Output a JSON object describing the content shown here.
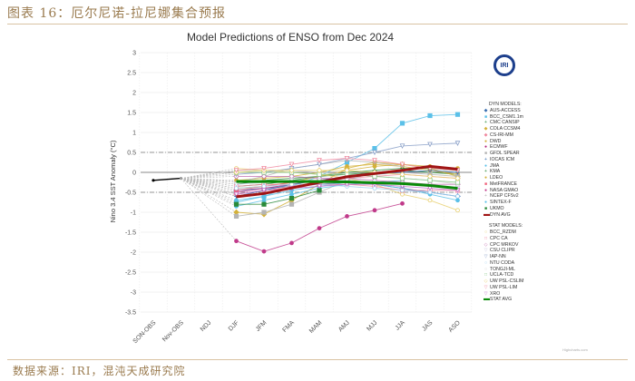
{
  "figure_title": "图表 16：厄尔尼诺-拉尼娜集合预报",
  "source": "数据来源：IRI，混沌天成研究院",
  "logo_text": "IRI",
  "credit": "Highcharts.com",
  "chart_data": {
    "type": "line",
    "title": "Model Predictions of ENSO from Dec 2024",
    "xlabel": "",
    "ylabel": "Nino 3.4 SST Anomaly (°C)",
    "ylim": [
      -3.5,
      3
    ],
    "yticks": [
      "3",
      "2.5",
      "2",
      "1.5",
      "1",
      "0.5",
      "0",
      "-0.5",
      "-1",
      "-1.5",
      "-2",
      "-2.5",
      "-3",
      "-3.5"
    ],
    "ytick_values": [
      3,
      2.5,
      2,
      1.5,
      1,
      0.5,
      0,
      -0.5,
      -1,
      -1.5,
      -2,
      -2.5,
      -3,
      -3.5
    ],
    "thresholds": [
      0.5,
      -0.5
    ],
    "grid": true,
    "legend_position": "right",
    "categories": [
      "SON-OBS",
      "Nov-OBS",
      "NDJ",
      "DJF",
      "JFM",
      "FMA",
      "MAM",
      "AMJ",
      "MJJ",
      "JJA",
      "JAS",
      "ASO"
    ],
    "observed": {
      "name": "OBS",
      "values": [
        -0.2,
        -0.15
      ],
      "color": "#000000"
    },
    "legend_dyn_header": "DYN MODELS:",
    "legend_stat_header": "STAT MODELS:",
    "series": [
      {
        "name": "AUS-ACCESS",
        "group": "dyn",
        "color": "#3a6fb0",
        "marker": "diamond",
        "values": [
          null,
          null,
          null,
          -0.45,
          -0.4,
          -0.35,
          -0.3,
          -0.25,
          -0.3,
          -0.4,
          -0.5,
          -0.6
        ]
      },
      {
        "name": "BCC_CSM1.1m",
        "group": "dyn",
        "color": "#5bc0e8",
        "marker": "square",
        "values": [
          null,
          null,
          null,
          -0.75,
          -0.6,
          -0.35,
          -0.1,
          0.25,
          0.6,
          1.23,
          1.42,
          1.45
        ]
      },
      {
        "name": "CMC CANSIP",
        "group": "dyn",
        "color": "#2a8a3a",
        "marker": "plus",
        "values": [
          null,
          null,
          null,
          -0.3,
          -0.2,
          -0.15,
          -0.1,
          -0.05,
          0.0,
          0.05,
          0.0,
          -0.05
        ]
      },
      {
        "name": "COLA CCSM4",
        "group": "dyn",
        "color": "#d4b13a",
        "marker": "diamond",
        "values": [
          null,
          null,
          null,
          -1.0,
          -1.05,
          -0.7,
          -0.3,
          0.1,
          0.25,
          0.2,
          0.1,
          -0.1
        ]
      },
      {
        "name": "CS-IRI-MM",
        "group": "dyn",
        "color": "#f08aa0",
        "marker": "diamond",
        "values": [
          null,
          null,
          null,
          -0.55,
          -0.45,
          -0.35,
          -0.25,
          -0.15,
          -0.1,
          -0.05,
          -0.1,
          -0.15
        ]
      },
      {
        "name": "DWD",
        "group": "dyn",
        "color": "#d4b13a",
        "marker": "circle",
        "values": [
          null,
          null,
          null,
          -0.2,
          -0.15,
          -0.1,
          0.0,
          0.15,
          0.2,
          0.15,
          0.05,
          -0.05
        ]
      },
      {
        "name": "ECMWF",
        "group": "dyn",
        "color": "#b0207a",
        "marker": "circle",
        "values": [
          null,
          null,
          null,
          -0.5,
          -0.4,
          -0.3,
          -0.2,
          -0.1,
          null,
          null,
          null,
          null
        ]
      },
      {
        "name": "GFDL SPEAR",
        "group": "dyn",
        "color": "#b4b4b4",
        "marker": "square",
        "values": [
          null,
          null,
          null,
          -1.1,
          -1.0,
          -0.8,
          -0.5,
          -0.2,
          0.0,
          0.0,
          -0.05,
          -0.1
        ]
      },
      {
        "name": "IOCAS ICM",
        "group": "dyn",
        "color": "#3a6fb0",
        "marker": "plus",
        "values": [
          null,
          null,
          null,
          -0.6,
          -0.45,
          -0.3,
          -0.2,
          -0.1,
          -0.05,
          0.0,
          0.05,
          0.0
        ]
      },
      {
        "name": "JMA",
        "group": "dyn",
        "color": "#5bc0e8",
        "marker": "circle",
        "values": [
          null,
          null,
          null,
          -0.7,
          -0.6,
          -0.45,
          -0.35,
          -0.25,
          -0.3,
          -0.4,
          -0.55,
          -0.7
        ]
      },
      {
        "name": "KMA",
        "group": "dyn",
        "color": "#2a8a3a",
        "marker": "plus",
        "values": [
          null,
          null,
          null,
          -0.35,
          -0.3,
          -0.2,
          -0.1,
          0.0,
          0.05,
          0.1,
          0.1,
          0.05
        ]
      },
      {
        "name": "LDEO",
        "group": "dyn",
        "color": "#d4b13a",
        "marker": "circle",
        "values": [
          null,
          null,
          null,
          -0.4,
          -0.35,
          -0.25,
          -0.1,
          0.05,
          0.15,
          0.2,
          0.15,
          0.1
        ]
      },
      {
        "name": "MetFRANCE",
        "group": "dyn",
        "color": "#f0607a",
        "marker": "square",
        "values": [
          null,
          null,
          null,
          -0.45,
          -0.35,
          -0.25,
          -0.2,
          -0.15,
          null,
          null,
          null,
          null
        ]
      },
      {
        "name": "NASA GMAO",
        "group": "dyn",
        "color": "#c03a8a",
        "marker": "circle",
        "values": [
          null,
          null,
          null,
          -1.72,
          -1.98,
          -1.77,
          -1.4,
          -1.1,
          -0.95,
          -0.78,
          null,
          null
        ]
      },
      {
        "name": "NCEP CFSv2",
        "group": "dyn",
        "color": "#b4b4b4",
        "marker": "plus",
        "values": [
          null,
          null,
          null,
          -0.25,
          -0.1,
          0.1,
          0.2,
          0.3,
          0.25,
          0.15,
          null,
          null
        ]
      },
      {
        "name": "SINTEX-F",
        "group": "dyn",
        "color": "#5bc0e8",
        "marker": "circle",
        "values": [
          null,
          null,
          null,
          -0.85,
          -0.7,
          -0.55,
          -0.4,
          -0.3,
          -0.25,
          -0.2,
          null,
          null
        ]
      },
      {
        "name": "UKMO",
        "group": "dyn",
        "color": "#2a8a3a",
        "marker": "square",
        "values": [
          null,
          null,
          null,
          -0.8,
          -0.8,
          -0.65,
          -0.45,
          null,
          null,
          null,
          null,
          null
        ]
      },
      {
        "name": "DYN AVG",
        "group": "dyn",
        "color": "#a01414",
        "marker": "none",
        "avg": true,
        "values": [
          null,
          null,
          null,
          -0.61,
          -0.53,
          -0.39,
          -0.25,
          -0.11,
          -0.03,
          0.05,
          0.15,
          0.08
        ]
      },
      {
        "name": "BCC_RZDM",
        "group": "stat",
        "color": "#e8d070",
        "marker": "open-circle",
        "values": [
          null,
          null,
          null,
          0.1,
          0.05,
          0.0,
          -0.05,
          -0.15,
          -0.3,
          -0.55,
          -0.7,
          -0.95
        ]
      },
      {
        "name": "CPC CA",
        "group": "stat",
        "color": "#f08aa0",
        "marker": "open-square",
        "values": [
          null,
          null,
          null,
          -0.35,
          -0.3,
          -0.3,
          -0.3,
          -0.3,
          -0.35,
          -0.45,
          -0.45,
          -0.45
        ]
      },
      {
        "name": "CPC MRKOV",
        "group": "stat",
        "color": "#c070b0",
        "marker": "open-diamond",
        "values": [
          null,
          null,
          null,
          -0.1,
          -0.1,
          -0.1,
          -0.15,
          -0.15,
          -0.2,
          -0.25,
          -0.3,
          -0.3
        ]
      },
      {
        "name": "CSU CLIPR",
        "group": "stat",
        "color": "#c8c8e0",
        "marker": "open-triangle",
        "values": [
          null,
          null,
          null,
          -0.3,
          -0.25,
          -0.2,
          -0.2,
          -0.2,
          -0.25,
          -0.3,
          -0.35,
          -0.4
        ]
      },
      {
        "name": "IAP-NN",
        "group": "stat",
        "color": "#8aa0c8",
        "marker": "open-triangle",
        "values": [
          null,
          null,
          null,
          -0.05,
          0.0,
          0.1,
          0.2,
          0.35,
          0.5,
          0.66,
          0.7,
          0.73
        ]
      },
      {
        "name": "NTU CODA",
        "group": "stat",
        "color": "#a0d0f0",
        "marker": "open-circle",
        "values": [
          null,
          null,
          null,
          -0.4,
          -0.35,
          -0.3,
          -0.3,
          -0.35,
          -0.4,
          -0.45,
          -0.5,
          -0.6
        ]
      },
      {
        "name": "TONGJI-ML",
        "group": "stat",
        "color": "#d0d0d0",
        "marker": "open-circle",
        "values": [
          null,
          null,
          null,
          0.05,
          0.05,
          0.05,
          0.0,
          -0.05,
          -0.1,
          -0.15,
          -0.2,
          -0.3
        ]
      },
      {
        "name": "UCLA-TCD",
        "group": "stat",
        "color": "#8ac88a",
        "marker": "open-square",
        "values": [
          null,
          null,
          null,
          0.0,
          0.0,
          0.0,
          -0.05,
          -0.05,
          -0.1,
          -0.15,
          -0.2,
          -0.25
        ]
      },
      {
        "name": "UW PSL-CSLIM",
        "group": "stat",
        "color": "#e8d070",
        "marker": "open-diamond",
        "values": [
          null,
          null,
          null,
          0.0,
          0.05,
          0.05,
          0.05,
          0.05,
          0.0,
          -0.05,
          -0.1,
          -0.15
        ]
      },
      {
        "name": "UW PSL-LIM",
        "group": "stat",
        "color": "#f08aa0",
        "marker": "open-triangle",
        "values": [
          null,
          null,
          null,
          0.05,
          0.1,
          0.2,
          0.3,
          0.35,
          0.3,
          0.2,
          0.1,
          0.05
        ]
      },
      {
        "name": "XRO",
        "group": "stat",
        "color": "#c070c8",
        "marker": "open-triangle",
        "values": [
          null,
          null,
          null,
          -0.55,
          -0.45,
          -0.4,
          -0.35,
          -0.3,
          -0.3,
          -0.35,
          -0.4,
          -0.45
        ]
      },
      {
        "name": "STAT AVG",
        "group": "stat",
        "color": "#0a8a0a",
        "marker": "none",
        "avg": true,
        "values": [
          null,
          null,
          null,
          -0.23,
          -0.23,
          -0.23,
          -0.23,
          -0.24,
          -0.26,
          -0.28,
          -0.33,
          -0.4
        ]
      }
    ]
  }
}
